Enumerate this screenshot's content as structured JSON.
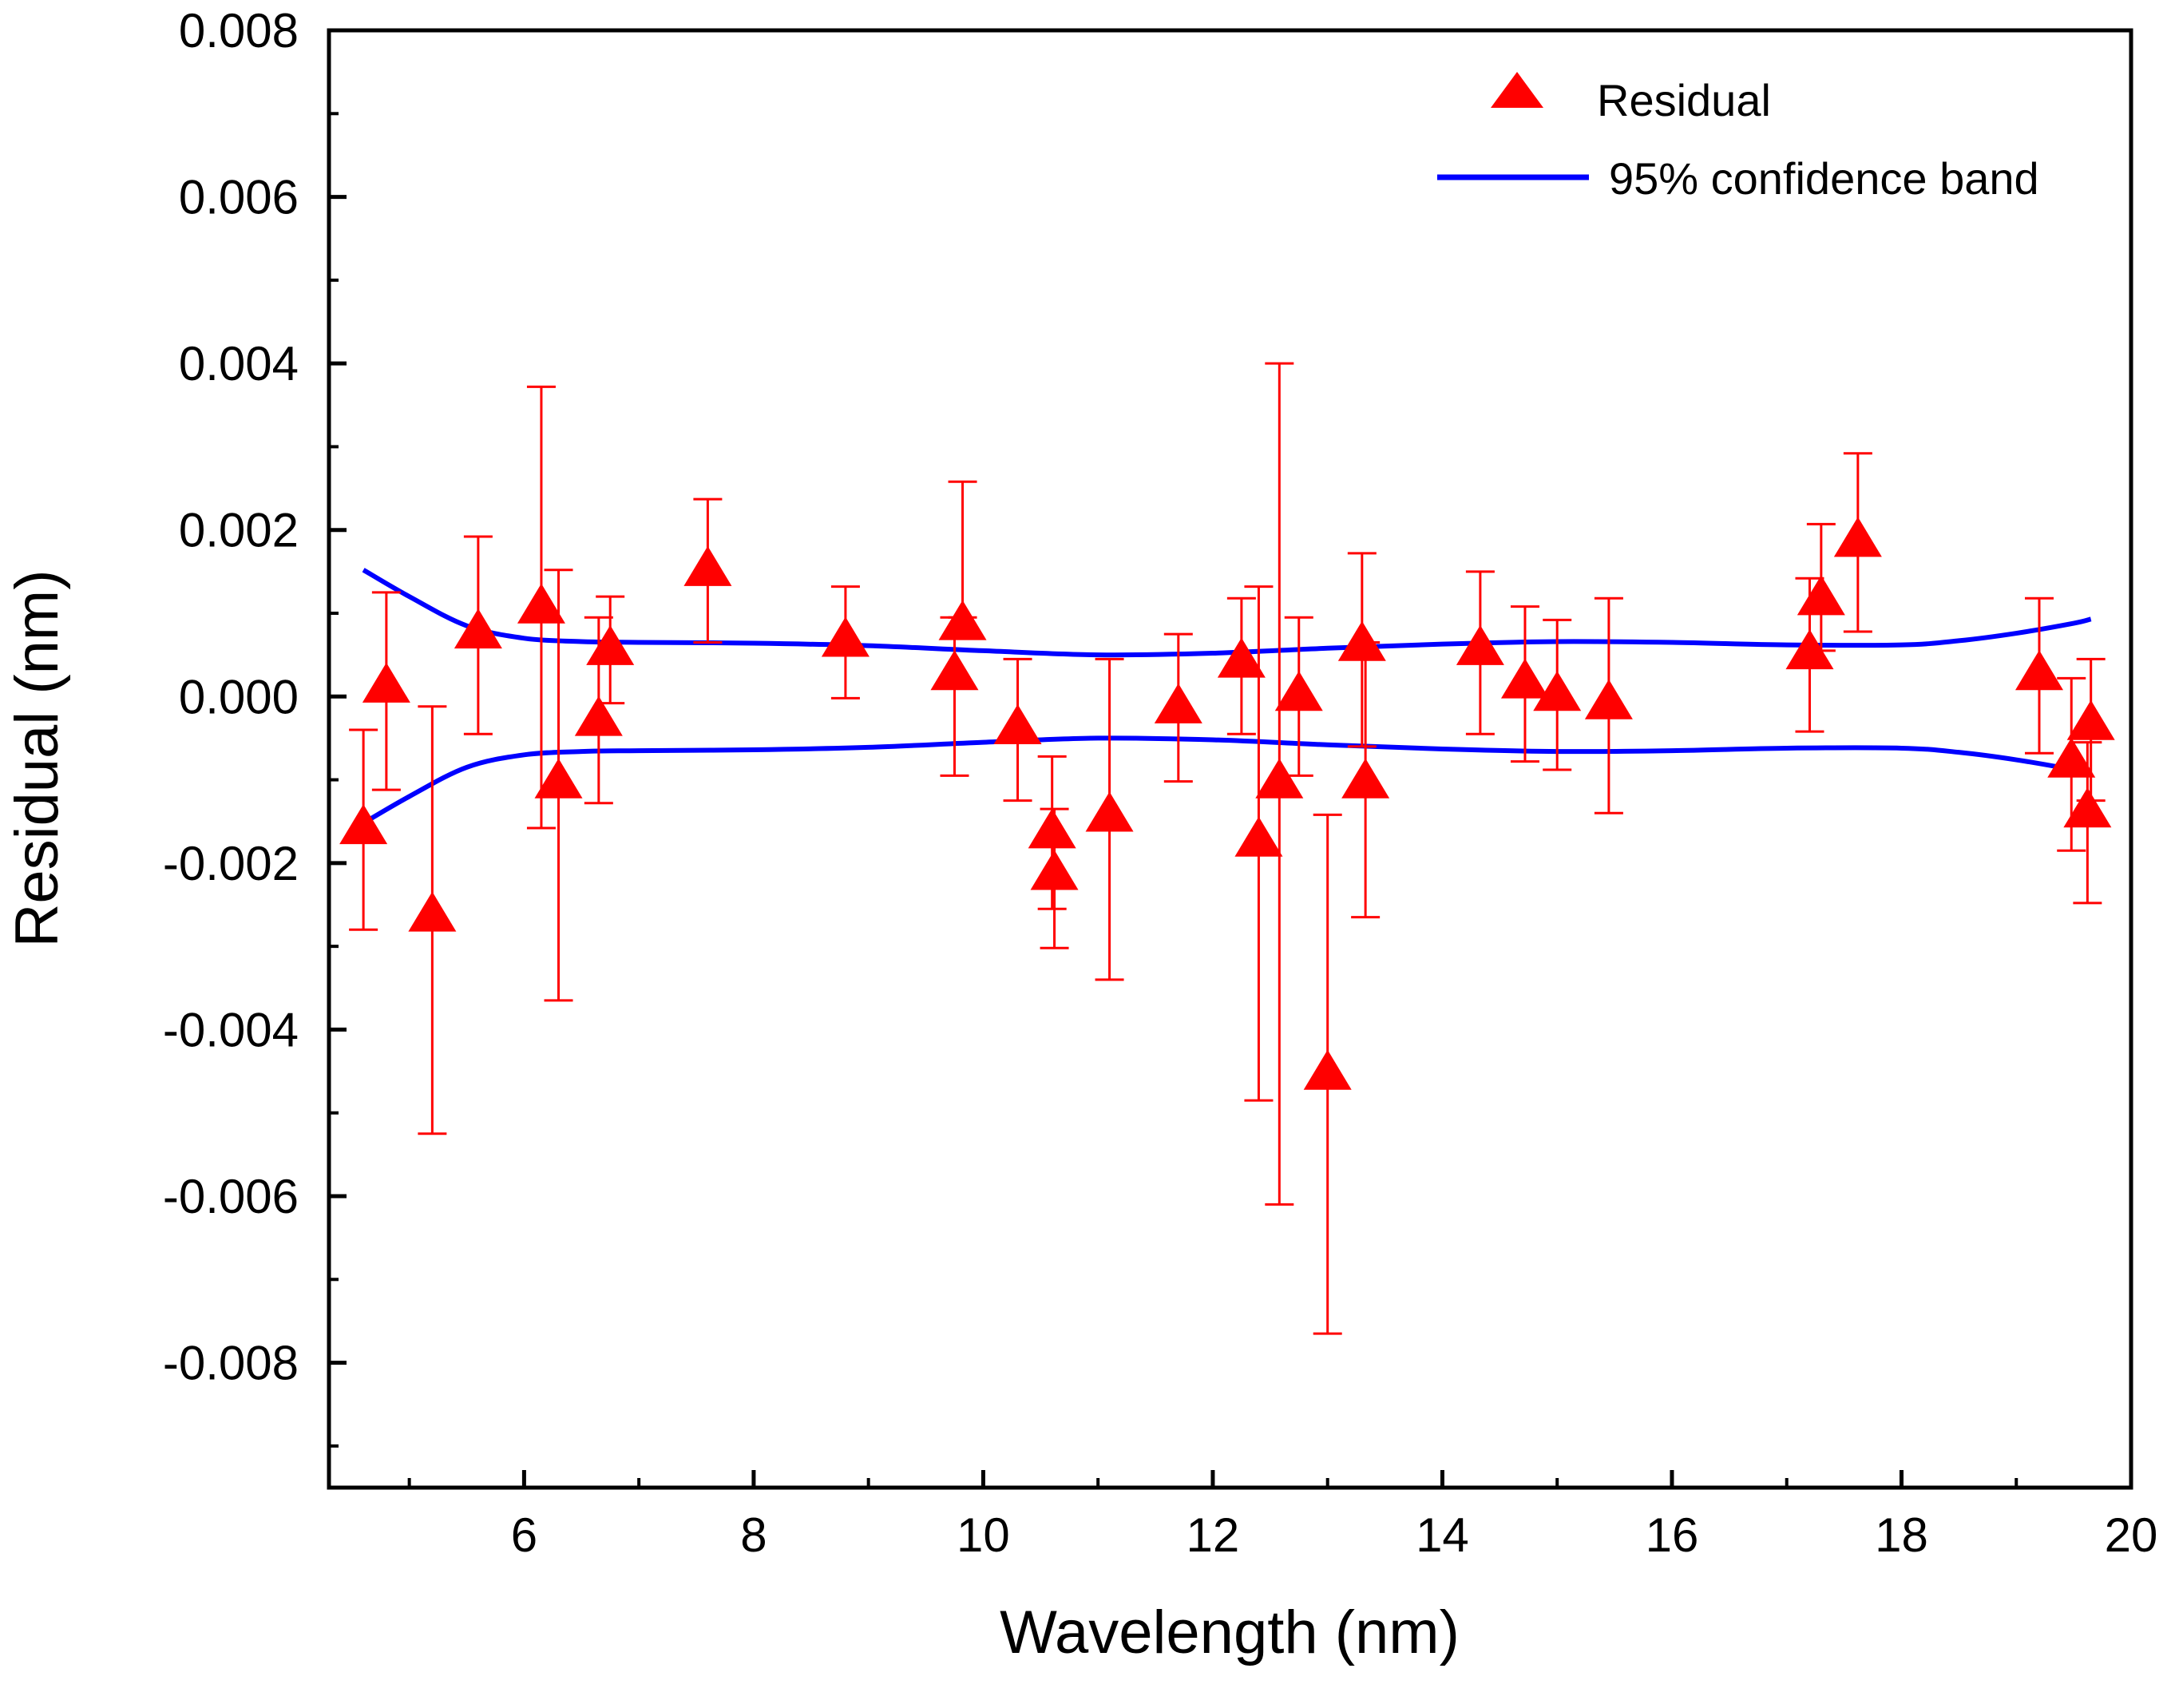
{
  "chart_data": {
    "type": "scatter",
    "xlabel": "Wavelength (nm)",
    "ylabel": "Residual (nm)",
    "xlim": [
      4.3,
      20
    ],
    "ylim": [
      -0.0095,
      0.008
    ],
    "x_ticks": [
      6,
      8,
      10,
      12,
      14,
      16,
      18,
      20
    ],
    "x_tick_labels": [
      "6",
      "8",
      "10",
      "12",
      "14",
      "16",
      "18",
      "20"
    ],
    "y_ticks": [
      0.008,
      0.006,
      0.004,
      0.002,
      0.0,
      -0.002,
      -0.004,
      -0.006,
      -0.008
    ],
    "y_tick_labels": [
      "0.008",
      "0.006",
      "0.004",
      "0.002",
      "0.000",
      "-0.002",
      "-0.004",
      "-0.006",
      "-0.008"
    ],
    "grid": false,
    "legend": {
      "position": "top-right",
      "entries": [
        "Residual",
        "95% confidence band"
      ]
    },
    "colors": {
      "marker": "#ff0000",
      "band": "#0000ff",
      "axis": "#000000"
    },
    "series": [
      {
        "name": "Residual",
        "marker": "triangle",
        "x": [
          4.6,
          4.8,
          5.2,
          5.6,
          6.15,
          6.3,
          6.65,
          6.75,
          7.6,
          8.8,
          9.75,
          9.82,
          10.3,
          10.6,
          10.62,
          11.1,
          11.7,
          12.25,
          12.4,
          12.58,
          12.75,
          13.0,
          13.3,
          13.33,
          14.33,
          14.72,
          15.0,
          15.45,
          17.2,
          17.3,
          17.62,
          19.2,
          19.48,
          19.62,
          19.65
        ],
        "y": [
          -0.0016,
          0.0001,
          -0.00265,
          0.00075,
          0.00105,
          -0.00105,
          -0.0003,
          0.00055,
          0.0015,
          0.00065,
          0.00025,
          0.00085,
          -0.0004,
          -0.00165,
          -0.00215,
          -0.00145,
          -0.00015,
          0.0004,
          -0.00175,
          -0.00105,
          0.0,
          -0.00455,
          0.0006,
          -0.00105,
          0.00055,
          0.00015,
          0.0,
          -0.0001,
          0.0005,
          0.00115,
          0.00185,
          0.00025,
          -0.0008,
          -0.0014,
          -0.00035
        ],
        "error_low": [
          -0.0028,
          -0.00112,
          -0.00525,
          -0.00045,
          -0.00158,
          -0.00365,
          -0.00128,
          -8e-05,
          0.00065,
          -2e-05,
          -0.00095,
          0.00095,
          -0.00125,
          -0.00255,
          -0.00302,
          -0.0034,
          -0.00102,
          -0.00045,
          -0.00485,
          -0.0061,
          -0.00095,
          -0.00765,
          -0.0006,
          -0.00265,
          -0.00045,
          -0.00078,
          -0.00088,
          -0.0014,
          -0.00042,
          0.00055,
          0.00078,
          -0.00068,
          -0.00185,
          -0.00248,
          -0.00125
        ],
        "error_high": [
          -0.0004,
          0.00125,
          -0.00012,
          0.00192,
          0.00372,
          0.00152,
          0.00095,
          0.0012,
          0.00237,
          0.00132,
          0.00095,
          0.00258,
          0.00045,
          -0.00072,
          -0.00135,
          0.00045,
          0.00075,
          0.00118,
          0.00132,
          0.004,
          0.00095,
          -0.00142,
          0.00172,
          0.00065,
          0.0015,
          0.00108,
          0.00092,
          0.00118,
          0.00142,
          0.00207,
          0.00292,
          0.00118,
          0.00022,
          -0.00055,
          0.00045
        ]
      },
      {
        "name": "95% confidence band",
        "line": "upper",
        "x": [
          4.6,
          5.0,
          5.5,
          6.0,
          6.5,
          7.0,
          8.0,
          9.0,
          10.0,
          11.0,
          12.0,
          13.0,
          14.0,
          15.0,
          16.0,
          17.0,
          18.0,
          18.5,
          19.0,
          19.5,
          19.65
        ],
        "y": [
          0.00152,
          0.0012,
          0.00085,
          0.0007,
          0.00066,
          0.00065,
          0.00064,
          0.00061,
          0.00055,
          0.0005,
          0.00052,
          0.00058,
          0.00063,
          0.00066,
          0.00065,
          0.00062,
          0.00062,
          0.00067,
          0.00076,
          0.00088,
          0.00093
        ]
      },
      {
        "name": "95% confidence band",
        "line": "lower",
        "x": [
          4.6,
          5.0,
          5.5,
          6.0,
          6.5,
          7.0,
          8.0,
          9.0,
          10.0,
          11.0,
          12.0,
          13.0,
          14.0,
          15.0,
          16.0,
          17.0,
          18.0,
          18.5,
          19.0,
          19.5,
          19.65
        ],
        "y": [
          -0.00152,
          -0.0012,
          -0.00085,
          -0.0007,
          -0.00066,
          -0.00065,
          -0.00064,
          -0.00061,
          -0.00055,
          -0.0005,
          -0.00052,
          -0.00058,
          -0.00063,
          -0.00066,
          -0.00065,
          -0.00062,
          -0.00062,
          -0.00067,
          -0.00076,
          -0.00088,
          -0.00093
        ]
      }
    ]
  }
}
